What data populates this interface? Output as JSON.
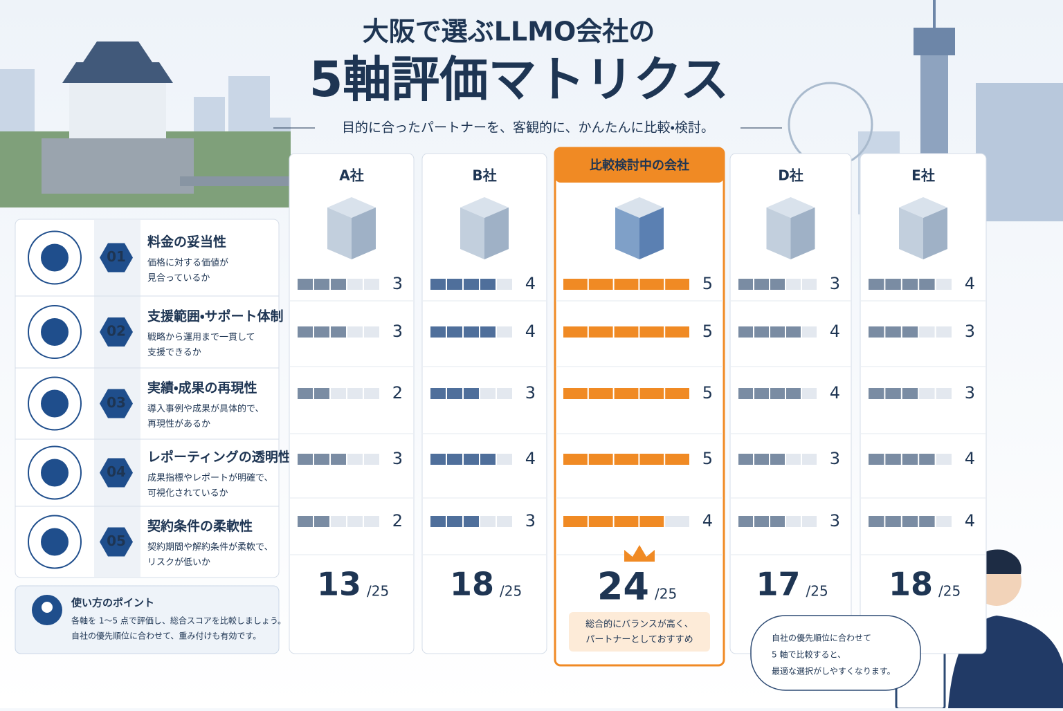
{
  "header": {
    "title_line1": "大阪で選ぶLLMO会社の",
    "title_line2": "5軸評価マトリクス",
    "subtitle": "目的に合ったパートナーを、客観的に、かんたんに比較・検討。"
  },
  "criteria": [
    {
      "number": "01",
      "title": "料金の妥当性",
      "desc": [
        "価格に対する価値が",
        "見合っているか"
      ]
    },
    {
      "number": "02",
      "title": "支援範囲・サポート体制",
      "desc": [
        "戦略から運用まで一貫して",
        "支援できるか"
      ]
    },
    {
      "number": "03",
      "title": "実績・成果の再現性",
      "desc": [
        "導入事例や成果が具体的で、",
        "再現性があるか"
      ]
    },
    {
      "number": "04",
      "title": "レポーティングの透明性",
      "desc": [
        "成果指標やレポートが明確で、",
        "可視化されているか"
      ]
    },
    {
      "number": "05",
      "title": "契約条件の柔軟性",
      "desc": [
        "契約期間や解約条件が柔軟で、",
        "リスクが低いか"
      ]
    }
  ],
  "total_max_label": "/25",
  "companies": [
    {
      "name": "A社",
      "color": "#7a8ca3",
      "scores": [
        3,
        3,
        2,
        3,
        2
      ],
      "total": 13
    },
    {
      "name": "B社",
      "color": "#4f6f9b",
      "scores": [
        4,
        4,
        3,
        4,
        3
      ],
      "total": 18
    },
    {
      "name": "比較検討中の会社",
      "color": "#f08a24",
      "featured": true,
      "scores": [
        5,
        5,
        5,
        5,
        4
      ],
      "total": 24,
      "note": [
        "総合的にバランスが高く、",
        "パートナーとしておすすめ"
      ]
    },
    {
      "name": "D社",
      "color": "#7a8ca3",
      "scores": [
        3,
        4,
        4,
        3,
        3
      ],
      "total": 17
    },
    {
      "name": "E社",
      "color": "#7a8ca3",
      "scores": [
        4,
        3,
        3,
        4,
        4
      ],
      "total": 18
    }
  ],
  "tips": {
    "title": "使い方のポイント",
    "lines": [
      "各軸を 1～5 点で評価し、総合スコアを比較しましょう。",
      "自社の優先順位に合わせて、重み付けも有効です。"
    ]
  },
  "bubble": {
    "lines": [
      "自社の優先順位に合わせて",
      "5 軸で比較すると、",
      "最適な選択がしやすくなります。"
    ]
  }
}
